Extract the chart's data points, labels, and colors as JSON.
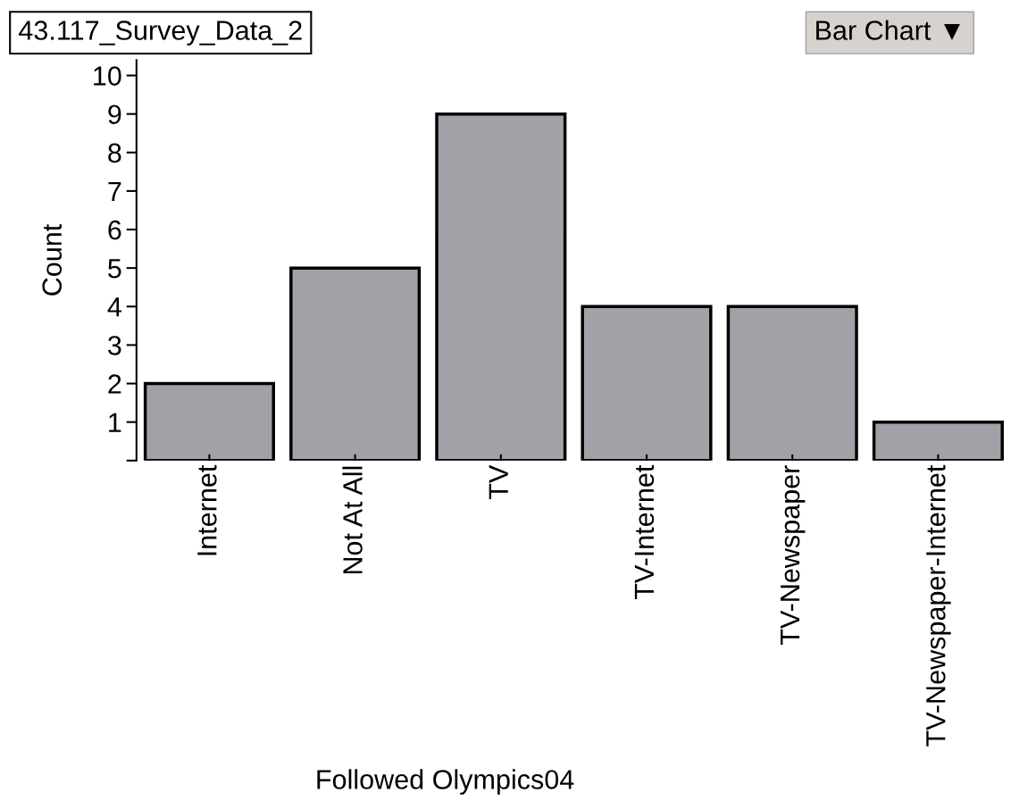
{
  "chart_data": {
    "type": "bar",
    "title": "43.117_Survey_Data_2",
    "xlabel": "Followed Olympics04",
    "ylabel": "Count",
    "categories": [
      "Internet",
      "Not At All",
      "TV",
      "TV-Internet",
      "TV-Newspaper",
      "TV-Newspaper-Internet"
    ],
    "values": [
      2,
      5,
      9,
      4,
      4,
      1
    ],
    "color": "#a2a1a8",
    "ylim": [
      0,
      10.4
    ],
    "yticks": [
      {
        "value": 0,
        "label": null
      },
      1,
      2,
      3,
      4,
      5,
      6,
      7,
      8,
      9,
      10
    ],
    "annotations": [
      "Bar Chart ▼"
    ],
    "grid": false,
    "legend": false
  }
}
